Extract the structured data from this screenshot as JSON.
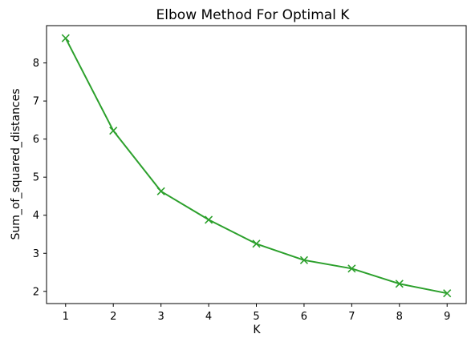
{
  "chart_data": {
    "type": "line",
    "title": "Elbow Method For Optimal K",
    "xlabel": "K",
    "ylabel": "Sum_of_squared_distances",
    "x": [
      1,
      2,
      3,
      4,
      5,
      6,
      7,
      8,
      9
    ],
    "series": [
      {
        "values": [
          8.65,
          6.22,
          4.63,
          3.88,
          3.25,
          2.82,
          2.6,
          2.2,
          1.95
        ],
        "color": "#2ca02c",
        "marker": "x"
      }
    ],
    "xticks": [
      "1",
      "2",
      "3",
      "4",
      "5",
      "6",
      "7",
      "8",
      "9"
    ],
    "yticks": [
      "2",
      "3",
      "4",
      "5",
      "6",
      "7",
      "8"
    ],
    "xlim": [
      0.6,
      9.4
    ],
    "ylim": [
      1.68,
      8.98
    ],
    "grid": false,
    "legend": "none"
  }
}
